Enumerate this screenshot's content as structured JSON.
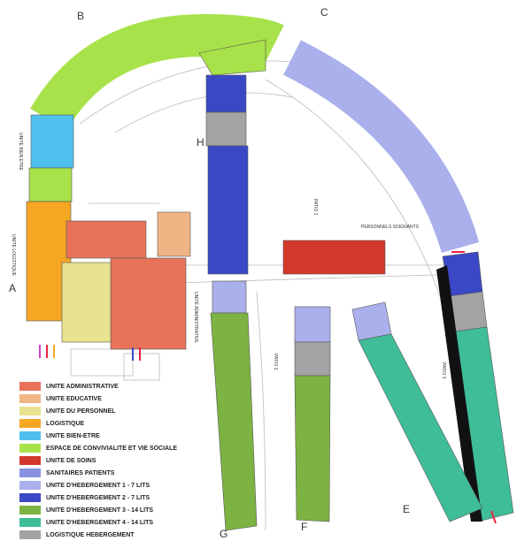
{
  "plan": {
    "wings": [
      "A",
      "B",
      "C",
      "E",
      "F",
      "G",
      "H"
    ],
    "labels": {
      "bien_etre": "UNITE BIEN ETRE",
      "logistique": "UNITE LOGISTIQUE",
      "administrative": "UNITE ADMINISTRATIVE",
      "soignants": "PERSONNELS SOIGNANTS",
      "patio1": "PATIO 1",
      "patio2": "PATIO 2",
      "patio3": "PATIO 3"
    },
    "legend": [
      {
        "label": "UNITE ADMINISTRATIVE",
        "color": "#e8735a"
      },
      {
        "label": "UNITE EDUCATIVE",
        "color": "#f0b585"
      },
      {
        "label": "UNITE DU PERSONNEL",
        "color": "#e9e28e"
      },
      {
        "label": "LOGISTIQUE",
        "color": "#f5a623"
      },
      {
        "label": "UNITE BIEN-ETRE",
        "color": "#4fc0ee"
      },
      {
        "label": "ESPACE DE CONVIVIALITE ET VIE SOCIALE",
        "color": "#a8e24a"
      },
      {
        "label": "UNITE DE SOINS",
        "color": "#d3392b"
      },
      {
        "label": "SANITAIRES PATIENTS",
        "color": "#8a90e2"
      },
      {
        "label": "UNITE D'HEBERGEMENT 1 - 7 LITS",
        "color": "#aab0ec"
      },
      {
        "label": "UNITE D'HEBERGEMENT 2  - 7 LITS",
        "color": "#3a48c6"
      },
      {
        "label": "UNITE D'HEBERGEMENT 3 - 14 LITS",
        "color": "#7cb342"
      },
      {
        "label": "UNITE D'HEBERGEMENT 4  - 14 LITS",
        "color": "#3fbd98"
      },
      {
        "label": "LOGISTIQUE HEBERGEMENT",
        "color": "#a3a3a3"
      }
    ]
  }
}
